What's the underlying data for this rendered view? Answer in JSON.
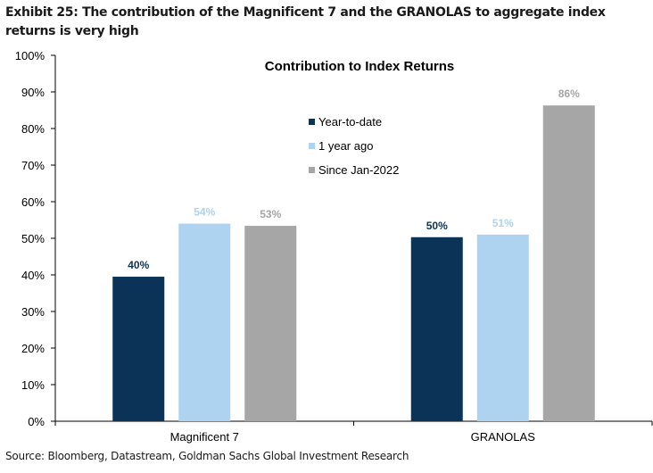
{
  "exhibit_title": "Exhibit 25: The contribution of the Magnificent 7 and the GRANOLAS to aggregate index returns is very high",
  "source": "Source: Bloomberg, Datastream, Goldman Sachs Global Investment Research",
  "chart_data": {
    "type": "bar",
    "title": "Contribution to Index Returns",
    "xlabel": "",
    "ylabel": "",
    "categories": [
      "Magnificent 7",
      "GRANOLAS"
    ],
    "ylim": [
      0,
      100
    ],
    "yticks": [
      0,
      10,
      20,
      30,
      40,
      50,
      60,
      70,
      80,
      90,
      100
    ],
    "ytick_labels": [
      "0%",
      "10%",
      "20%",
      "30%",
      "40%",
      "50%",
      "60%",
      "70%",
      "80%",
      "90%",
      "100%"
    ],
    "grid": false,
    "legend_position": "center",
    "series": [
      {
        "name": "Year-to-date",
        "color": "#0b3358",
        "values": [
          39.5,
          50.3
        ],
        "labels": [
          "40%",
          "50%"
        ]
      },
      {
        "name": "1 year ago",
        "color": "#aed3f0",
        "values": [
          54.0,
          51.0
        ],
        "labels": [
          "54%",
          "51%"
        ]
      },
      {
        "name": "Since Jan-2022",
        "color": "#a6a6a6",
        "values": [
          53.4,
          86.3
        ],
        "labels": [
          "53%",
          "86%"
        ]
      }
    ]
  }
}
